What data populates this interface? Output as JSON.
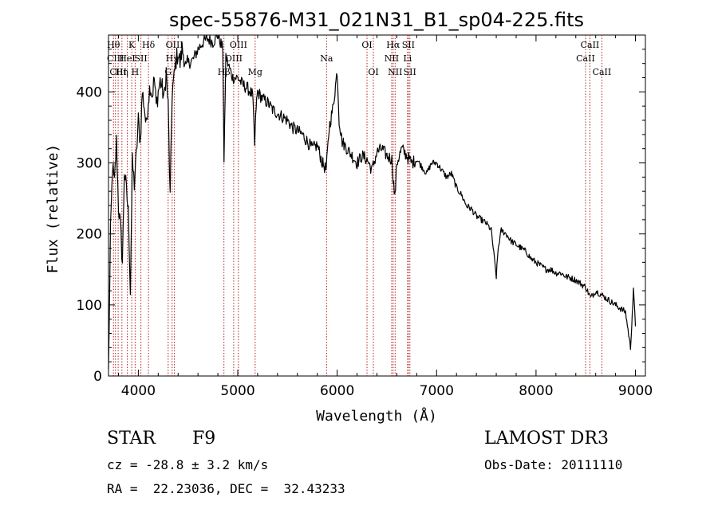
{
  "chart_data": {
    "type": "line",
    "title": "spec-55876-M31_021N31_B1_sp04-225.fits",
    "xlabel": "Wavelength (Å)",
    "ylabel": "Flux (relative)",
    "xlim": [
      3700,
      9100
    ],
    "ylim": [
      0,
      480
    ],
    "x_ticks": [
      4000,
      5000,
      6000,
      7000,
      8000,
      9000
    ],
    "y_ticks": [
      0,
      100,
      200,
      300,
      400
    ],
    "line_color": "#000000",
    "marker_color": "#b22222",
    "series": [
      {
        "name": "flux",
        "x": [
          3700,
          3720,
          3740,
          3760,
          3780,
          3800,
          3820,
          3840,
          3860,
          3880,
          3900,
          3920,
          3940,
          3960,
          3980,
          4000,
          4020,
          4040,
          4060,
          4080,
          4100,
          4120,
          4140,
          4160,
          4180,
          4200,
          4220,
          4240,
          4260,
          4280,
          4300,
          4320,
          4340,
          4360,
          4380,
          4400,
          4420,
          4440,
          4460,
          4480,
          4500,
          4550,
          4600,
          4650,
          4700,
          4750,
          4800,
          4850,
          4862,
          4880,
          4900,
          4950,
          5000,
          5050,
          5100,
          5150,
          5170,
          5185,
          5200,
          5250,
          5300,
          5350,
          5400,
          5450,
          5500,
          5550,
          5600,
          5650,
          5700,
          5750,
          5800,
          5850,
          5890,
          5920,
          5960,
          6000,
          6020,
          6050,
          6100,
          6150,
          6200,
          6250,
          6300,
          6350,
          6400,
          6450,
          6500,
          6550,
          6563,
          6580,
          6600,
          6650,
          6700,
          6750,
          6800,
          6850,
          6900,
          6950,
          7000,
          7050,
          7100,
          7150,
          7200,
          7250,
          7300,
          7350,
          7400,
          7450,
          7500,
          7550,
          7600,
          7620,
          7650,
          7700,
          7750,
          7800,
          7850,
          7900,
          7950,
          8000,
          8050,
          8100,
          8150,
          8200,
          8250,
          8300,
          8350,
          8400,
          8450,
          8500,
          8550,
          8600,
          8650,
          8700,
          8750,
          8800,
          8850,
          8900,
          8950,
          8980,
          9000
        ],
        "y": [
          5,
          200,
          295,
          270,
          330,
          240,
          210,
          160,
          290,
          260,
          230,
          120,
          300,
          270,
          310,
          360,
          330,
          400,
          380,
          350,
          390,
          410,
          395,
          420,
          380,
          400,
          415,
          405,
          390,
          430,
          380,
          250,
          400,
          420,
          445,
          455,
          440,
          460,
          450,
          430,
          440,
          445,
          460,
          470,
          475,
          470,
          480,
          460,
          300,
          450,
          440,
          420,
          420,
          410,
          405,
          395,
          325,
          380,
          400,
          390,
          385,
          375,
          370,
          365,
          360,
          350,
          345,
          340,
          330,
          320,
          325,
          300,
          290,
          350,
          380,
          430,
          360,
          330,
          320,
          310,
          300,
          310,
          305,
          290,
          315,
          320,
          310,
          305,
          280,
          250,
          300,
          320,
          310,
          300,
          305,
          295,
          285,
          300,
          300,
          290,
          280,
          285,
          265,
          255,
          240,
          235,
          225,
          220,
          215,
          205,
          140,
          180,
          205,
          200,
          190,
          185,
          180,
          175,
          165,
          160,
          155,
          150,
          150,
          145,
          145,
          140,
          138,
          135,
          130,
          125,
          110,
          120,
          115,
          110,
          105,
          100,
          95,
          90,
          40,
          120,
          70
        ]
      }
    ],
    "lines": [
      {
        "w": 3750,
        "label": "Hθ",
        "row": 1
      },
      {
        "w": 3770,
        "label": "CIII",
        "row": 2
      },
      {
        "w": 3797,
        "label": "CIII",
        "row": 3
      },
      {
        "w": 3835,
        "label": "Hη",
        "row": 3
      },
      {
        "w": 3889,
        "label": "HeI",
        "row": 2
      },
      {
        "w": 3934,
        "label": "K",
        "row": 1
      },
      {
        "w": 3968,
        "label": "H",
        "row": 3
      },
      {
        "w": 4026,
        "label": "SII",
        "row": 2
      },
      {
        "w": 4102,
        "label": "Hδ",
        "row": 1
      },
      {
        "w": 4300,
        "label": "G",
        "row": 3
      },
      {
        "w": 4340,
        "label": "Hγ",
        "row": 2
      },
      {
        "w": 4363,
        "label": "OIII",
        "row": 1
      },
      {
        "w": 4861,
        "label": "Hβ",
        "row": 3
      },
      {
        "w": 4959,
        "label": "OIII",
        "row": 2
      },
      {
        "w": 5007,
        "label": "OIII",
        "row": 1
      },
      {
        "w": 5175,
        "label": "Mg",
        "row": 3
      },
      {
        "w": 5893,
        "label": "Na",
        "row": 2
      },
      {
        "w": 6300,
        "label": "OI",
        "row": 1
      },
      {
        "w": 6364,
        "label": "OI",
        "row": 3
      },
      {
        "w": 6548,
        "label": "NII",
        "row": 2
      },
      {
        "w": 6563,
        "label": "Hα",
        "row": 1
      },
      {
        "w": 6583,
        "label": "NII",
        "row": 3
      },
      {
        "w": 6708,
        "label": "Li",
        "row": 2
      },
      {
        "w": 6716,
        "label": "SII",
        "row": 1
      },
      {
        "w": 6731,
        "label": "SII",
        "row": 3
      },
      {
        "w": 8498,
        "label": "CaII",
        "row": 2
      },
      {
        "w": 8542,
        "label": "CaII",
        "row": 1
      },
      {
        "w": 8662,
        "label": "CaII",
        "row": 3
      }
    ]
  },
  "info": {
    "class_label": "STAR",
    "subclass": "F9",
    "survey": "LAMOST DR3",
    "cz": "cz = -28.8 ± 3.2 km/s",
    "obs_date": "Obs-Date: 20111110",
    "coords": "RA =  22.23036, DEC =  32.43233"
  }
}
